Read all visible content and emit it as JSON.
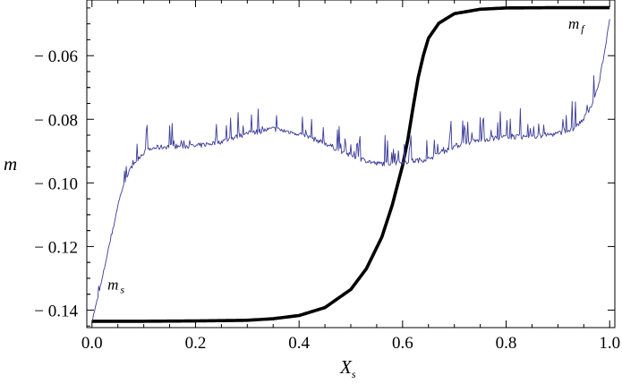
{
  "chart_data": {
    "type": "line",
    "title": "",
    "xlabel": {
      "main": "X",
      "sub": "s"
    },
    "ylabel": "m",
    "xlim": [
      -0.01,
      1.01
    ],
    "ylim": [
      -0.1455,
      -0.0425
    ],
    "xticks": [
      0.0,
      0.2,
      0.4,
      0.6,
      0.8,
      1.0
    ],
    "xtick_labels": [
      "0.0",
      "0.2",
      "0.4",
      "0.6",
      "0.8",
      "1.0"
    ],
    "yticks": [
      -0.06,
      -0.08,
      -0.1,
      -0.12,
      -0.14
    ],
    "ytick_labels": [
      "− 0.06",
      "− 0.08",
      "− 0.10",
      "− 0.12",
      "− 0.14"
    ],
    "grid": false,
    "annotations": [
      {
        "main": "m",
        "sub": "s",
        "x": 0.03,
        "y": -0.1335
      },
      {
        "main": "m",
        "sub": "f",
        "x": 0.92,
        "y": -0.0515
      }
    ],
    "series": [
      {
        "style": "thick-black",
        "color": "#000000",
        "x": [
          0.0,
          0.1,
          0.2,
          0.3,
          0.35,
          0.4,
          0.45,
          0.5,
          0.53,
          0.56,
          0.58,
          0.6,
          0.61,
          0.62,
          0.63,
          0.64,
          0.65,
          0.67,
          0.7,
          0.75,
          0.8,
          0.9,
          1.0
        ],
        "y": [
          -0.1435,
          -0.1435,
          -0.1434,
          -0.1432,
          -0.1427,
          -0.1417,
          -0.1392,
          -0.1335,
          -0.127,
          -0.117,
          -0.107,
          -0.0945,
          -0.0865,
          -0.0765,
          -0.067,
          -0.06,
          -0.0545,
          -0.0498,
          -0.0468,
          -0.0454,
          -0.045,
          -0.0449,
          -0.0449
        ]
      },
      {
        "style": "thin-noisy",
        "color": "#3c3c9a",
        "x": [
          0.0,
          0.01,
          0.02,
          0.03,
          0.04,
          0.05,
          0.06,
          0.07,
          0.08,
          0.09,
          0.1,
          0.12,
          0.15,
          0.18,
          0.2,
          0.25,
          0.3,
          0.35,
          0.4,
          0.45,
          0.5,
          0.55,
          0.6,
          0.65,
          0.7,
          0.75,
          0.8,
          0.85,
          0.9,
          0.93,
          0.95,
          0.97,
          0.98,
          0.99,
          1.0
        ],
        "y": [
          -0.1435,
          -0.137,
          -0.13,
          -0.122,
          -0.115,
          -0.107,
          -0.101,
          -0.097,
          -0.094,
          -0.092,
          -0.0905,
          -0.089,
          -0.0885,
          -0.0885,
          -0.0885,
          -0.087,
          -0.0845,
          -0.083,
          -0.0845,
          -0.0875,
          -0.0915,
          -0.094,
          -0.0935,
          -0.0925,
          -0.0885,
          -0.0865,
          -0.0855,
          -0.0855,
          -0.0845,
          -0.083,
          -0.08,
          -0.074,
          -0.068,
          -0.059,
          -0.0485
        ]
      }
    ]
  }
}
